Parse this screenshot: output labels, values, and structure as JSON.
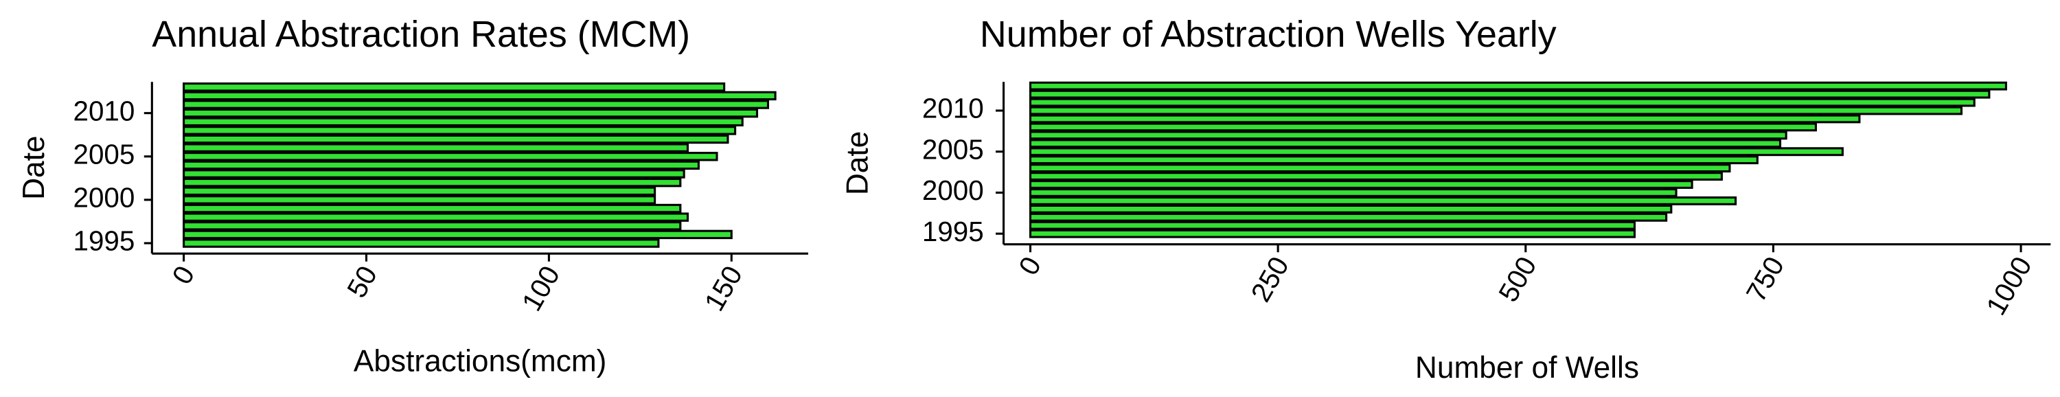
{
  "chart_data": [
    {
      "type": "barh",
      "title": "Annual Abstraction Rates (MCM)",
      "x_label": "Abstractions(mcm)",
      "y_label": "Date",
      "categories": [
        1995,
        1996,
        1997,
        1998,
        1999,
        2000,
        2001,
        2002,
        2003,
        2004,
        2005,
        2006,
        2007,
        2008,
        2009,
        2010,
        2011,
        2012,
        2013
      ],
      "values": [
        130,
        150,
        136,
        138,
        136,
        129,
        129,
        136,
        137,
        141,
        146,
        138,
        149,
        151,
        153,
        157,
        160,
        162,
        148
      ],
      "color": "#33e033",
      "xlim": [
        -8.7,
        171
      ],
      "xticks": [
        0,
        50,
        100,
        150
      ],
      "ylim": [
        1993.8,
        2013.6
      ],
      "yticks": [
        1995,
        2000,
        2005,
        2010
      ]
    },
    {
      "type": "barh",
      "title": "Number of Abstraction Wells Yearly",
      "x_label": "Number of Wells",
      "y_label": "Date",
      "categories": [
        1995,
        1996,
        1997,
        1998,
        1999,
        2000,
        2001,
        2002,
        2003,
        2004,
        2005,
        2006,
        2007,
        2008,
        2009,
        2010,
        2011,
        2012,
        2013
      ],
      "values": [
        610,
        610,
        642,
        647,
        712,
        652,
        668,
        698,
        706,
        734,
        820,
        757,
        763,
        793,
        837,
        940,
        953,
        968,
        985
      ],
      "color": "#33e033",
      "xlim": [
        -27,
        1030
      ],
      "xticks": [
        0,
        250,
        500,
        750,
        1000
      ],
      "ylim": [
        1993.7,
        2013.5
      ],
      "yticks": [
        1995,
        2000,
        2005,
        2010
      ]
    }
  ]
}
